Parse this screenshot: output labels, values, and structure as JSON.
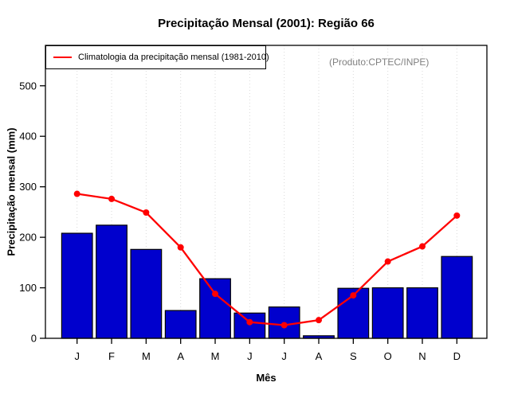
{
  "window": {
    "background": "#ffffff"
  },
  "annotations": {
    "produto": "(Produto:CPTEC/INPE)"
  },
  "colors": {
    "bar_fill": "#0000cd",
    "bar_border": "#000000",
    "line": "#ff0000",
    "grid": "#d9d9d9",
    "axis": "#000000",
    "produto_text": "#808080",
    "background": "#ffffff"
  },
  "chart_data": {
    "type": "bar+line",
    "title": "Precipitação Mensal (2001): Região 66",
    "xlabel": "Mês",
    "ylabel": "Precipitação mensal (mm)",
    "categories": [
      "J",
      "F",
      "M",
      "A",
      "M",
      "J",
      "J",
      "A",
      "S",
      "O",
      "N",
      "D"
    ],
    "series": [
      {
        "name": "Precipitação mensal 2001",
        "type": "bar",
        "color": "#0000cd",
        "values": [
          208,
          224,
          176,
          55,
          118,
          50,
          62,
          5,
          99,
          100,
          100,
          162
        ]
      },
      {
        "name": "Climatologia da precipitação mensal (1981-2010)",
        "type": "line",
        "color": "#ff0000",
        "values": [
          286,
          276,
          249,
          180,
          88,
          32,
          26,
          36,
          85,
          152,
          182,
          243
        ]
      }
    ],
    "ylim": [
      0,
      580
    ],
    "yticks": [
      0,
      100,
      200,
      300,
      400,
      500
    ],
    "grid": "vertical-dotted-at-months",
    "legend_position": "top-left-inside",
    "annotation": "(Produto:CPTEC/INPE)"
  }
}
